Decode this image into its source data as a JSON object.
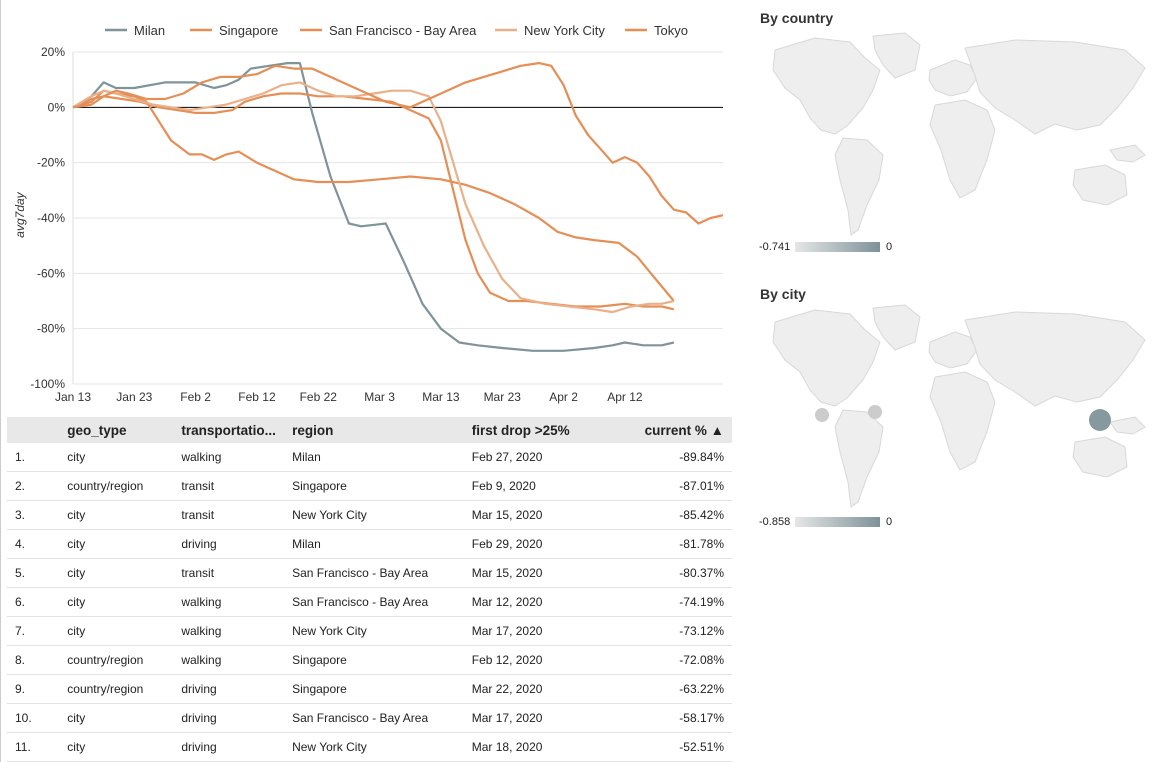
{
  "chart_data": {
    "type": "line",
    "title": "",
    "xlabel": "",
    "ylabel": "avg7day",
    "ylim": [
      -100,
      20
    ],
    "yticks": [
      "20%",
      "0%",
      "-20%",
      "-40%",
      "-60%",
      "-80%",
      "-100%"
    ],
    "xticks": [
      "Jan 13",
      "Jan 23",
      "Feb 2",
      "Feb 12",
      "Feb 22",
      "Mar 3",
      "Mar 13",
      "Mar 23",
      "Apr 2",
      "Apr 12"
    ],
    "legend_position": "top",
    "series": [
      {
        "name": "Milan",
        "color": "#7f939a",
        "points": [
          [
            0,
            0
          ],
          [
            3,
            4
          ],
          [
            5,
            9
          ],
          [
            7,
            7
          ],
          [
            10,
            7
          ],
          [
            15,
            9
          ],
          [
            20,
            9
          ],
          [
            23,
            7
          ],
          [
            25,
            8
          ],
          [
            27,
            10
          ],
          [
            29,
            14
          ],
          [
            32,
            15
          ],
          [
            35,
            16
          ],
          [
            37,
            16
          ],
          [
            39,
            -2
          ],
          [
            42,
            -25
          ],
          [
            45,
            -42
          ],
          [
            47,
            -43
          ],
          [
            51,
            -42
          ],
          [
            54,
            -56
          ],
          [
            57,
            -71
          ],
          [
            60,
            -80
          ],
          [
            63,
            -85
          ],
          [
            66,
            -86
          ],
          [
            70,
            -87
          ],
          [
            75,
            -88
          ],
          [
            80,
            -88
          ],
          [
            85,
            -87
          ],
          [
            88,
            -86
          ],
          [
            90,
            -85
          ],
          [
            93,
            -86
          ],
          [
            96,
            -86
          ],
          [
            98,
            -85
          ]
        ]
      },
      {
        "name": "Singapore",
        "color": "#e58e55",
        "points": [
          [
            0,
            0
          ],
          [
            3,
            2
          ],
          [
            5,
            6
          ],
          [
            7,
            5
          ],
          [
            10,
            4
          ],
          [
            12,
            2
          ],
          [
            14,
            -5
          ],
          [
            16,
            -12
          ],
          [
            19,
            -17
          ],
          [
            21,
            -17
          ],
          [
            23,
            -19
          ],
          [
            25,
            -17
          ],
          [
            27,
            -16
          ],
          [
            30,
            -20
          ],
          [
            33,
            -23
          ],
          [
            36,
            -26
          ],
          [
            40,
            -27
          ],
          [
            45,
            -27
          ],
          [
            50,
            -26
          ],
          [
            55,
            -25
          ],
          [
            60,
            -26
          ],
          [
            64,
            -28
          ],
          [
            68,
            -31
          ],
          [
            72,
            -35
          ],
          [
            76,
            -40
          ],
          [
            79,
            -45
          ],
          [
            82,
            -47
          ],
          [
            85,
            -48
          ],
          [
            89,
            -49
          ],
          [
            92,
            -54
          ],
          [
            95,
            -62
          ],
          [
            98,
            -70
          ]
        ]
      },
      {
        "name": "San Francisco - Bay Area",
        "color": "#e58e55",
        "points": [
          [
            0,
            0
          ],
          [
            3,
            3
          ],
          [
            5,
            4
          ],
          [
            8,
            3
          ],
          [
            11,
            2
          ],
          [
            14,
            0
          ],
          [
            17,
            -1
          ],
          [
            20,
            -2
          ],
          [
            23,
            -2
          ],
          [
            26,
            -1
          ],
          [
            28,
            2
          ],
          [
            31,
            4
          ],
          [
            34,
            5
          ],
          [
            37,
            5
          ],
          [
            40,
            4
          ],
          [
            44,
            4
          ],
          [
            48,
            3
          ],
          [
            52,
            2
          ],
          [
            55,
            -1
          ],
          [
            58,
            -4
          ],
          [
            60,
            -12
          ],
          [
            62,
            -30
          ],
          [
            64,
            -48
          ],
          [
            66,
            -60
          ],
          [
            68,
            -67
          ],
          [
            71,
            -70
          ],
          [
            74,
            -70
          ],
          [
            78,
            -71
          ],
          [
            82,
            -72
          ],
          [
            86,
            -72
          ],
          [
            90,
            -71
          ],
          [
            93,
            -72
          ],
          [
            96,
            -72
          ],
          [
            98,
            -73
          ]
        ]
      },
      {
        "name": "New York City",
        "color": "#eab08a",
        "points": [
          [
            0,
            0
          ],
          [
            3,
            4
          ],
          [
            5,
            6
          ],
          [
            7,
            5
          ],
          [
            10,
            3
          ],
          [
            13,
            1
          ],
          [
            16,
            0
          ],
          [
            19,
            -1
          ],
          [
            22,
            0
          ],
          [
            25,
            1
          ],
          [
            28,
            3
          ],
          [
            31,
            5
          ],
          [
            34,
            8
          ],
          [
            37,
            9
          ],
          [
            40,
            6
          ],
          [
            43,
            4
          ],
          [
            46,
            4
          ],
          [
            49,
            5
          ],
          [
            52,
            6
          ],
          [
            55,
            6
          ],
          [
            58,
            4
          ],
          [
            60,
            -5
          ],
          [
            62,
            -20
          ],
          [
            64,
            -35
          ],
          [
            67,
            -50
          ],
          [
            70,
            -62
          ],
          [
            73,
            -69
          ],
          [
            77,
            -71
          ],
          [
            81,
            -72
          ],
          [
            85,
            -73
          ],
          [
            88,
            -74
          ],
          [
            91,
            -72
          ],
          [
            94,
            -71
          ],
          [
            96,
            -71
          ],
          [
            98,
            -70
          ]
        ]
      },
      {
        "name": "Tokyo",
        "color": "#e58e55",
        "points": [
          [
            0,
            0
          ],
          [
            3,
            1
          ],
          [
            5,
            4
          ],
          [
            7,
            6
          ],
          [
            9,
            5
          ],
          [
            12,
            3
          ],
          [
            15,
            3
          ],
          [
            18,
            5
          ],
          [
            21,
            9
          ],
          [
            24,
            11
          ],
          [
            27,
            11
          ],
          [
            30,
            12
          ],
          [
            33,
            15
          ],
          [
            36,
            14
          ],
          [
            39,
            14
          ],
          [
            42,
            11
          ],
          [
            45,
            8
          ],
          [
            48,
            5
          ],
          [
            51,
            2
          ],
          [
            55,
            0
          ],
          [
            58,
            3
          ],
          [
            61,
            6
          ],
          [
            64,
            9
          ],
          [
            67,
            11
          ],
          [
            70,
            13
          ],
          [
            73,
            15
          ],
          [
            76,
            16
          ],
          [
            78,
            15
          ],
          [
            80,
            8
          ],
          [
            82,
            -3
          ],
          [
            84,
            -10
          ],
          [
            86,
            -15
          ],
          [
            88,
            -20
          ],
          [
            90,
            -18
          ],
          [
            92,
            -20
          ],
          [
            94,
            -25
          ],
          [
            96,
            -32
          ],
          [
            98,
            -37
          ],
          [
            100,
            -38
          ],
          [
            102,
            -42
          ],
          [
            104,
            -40
          ],
          [
            106,
            -39
          ]
        ]
      }
    ]
  },
  "table": {
    "headers": [
      "",
      "geo_type",
      "transportatio...",
      "region",
      "first drop >25%",
      "current % ▲"
    ],
    "rows": [
      [
        "1.",
        "city",
        "walking",
        "Milan",
        "Feb 27, 2020",
        "-89.84%"
      ],
      [
        "2.",
        "country/region",
        "transit",
        "Singapore",
        "Feb 9, 2020",
        "-87.01%"
      ],
      [
        "3.",
        "city",
        "transit",
        "New York City",
        "Mar 15, 2020",
        "-85.42%"
      ],
      [
        "4.",
        "city",
        "driving",
        "Milan",
        "Feb 29, 2020",
        "-81.78%"
      ],
      [
        "5.",
        "city",
        "transit",
        "San Francisco - Bay Area",
        "Mar 15, 2020",
        "-80.37%"
      ],
      [
        "6.",
        "city",
        "walking",
        "San Francisco - Bay Area",
        "Mar 12, 2020",
        "-74.19%"
      ],
      [
        "7.",
        "city",
        "walking",
        "New York City",
        "Mar 17, 2020",
        "-73.12%"
      ],
      [
        "8.",
        "country/region",
        "walking",
        "Singapore",
        "Feb 12, 2020",
        "-72.08%"
      ],
      [
        "9.",
        "country/region",
        "driving",
        "Singapore",
        "Mar 22, 2020",
        "-63.22%"
      ],
      [
        "10.",
        "city",
        "driving",
        "San Francisco - Bay Area",
        "Mar 17, 2020",
        "-58.17%"
      ],
      [
        "11.",
        "city",
        "driving",
        "New York City",
        "Mar 18, 2020",
        "-52.51%"
      ]
    ]
  },
  "maps": {
    "country": {
      "title": "By country",
      "legend_min": "-0.741",
      "legend_max": "0"
    },
    "city": {
      "title": "By city",
      "legend_min": "-0.858",
      "legend_max": "0",
      "bubbles": [
        {
          "name": "San Francisco",
          "color": "#c9c9c9"
        },
        {
          "name": "New York",
          "color": "#c9c9c9"
        },
        {
          "name": "Tokyo",
          "color": "#7f939a"
        }
      ]
    }
  }
}
